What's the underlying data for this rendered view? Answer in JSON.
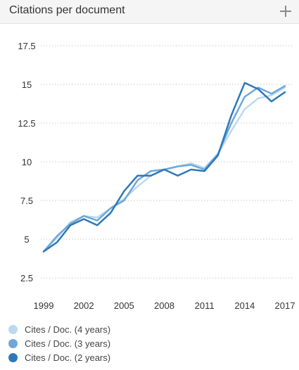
{
  "widget": {
    "title": "Citations per document",
    "add_icon": "plus-icon"
  },
  "colors": {
    "header_bg": "#f5f5f5",
    "grid": "#c8c8c8",
    "axis_text": "#333333"
  },
  "chart_data": {
    "type": "line",
    "title": "Citations per document",
    "xlabel": "",
    "ylabel": "",
    "x": [
      1999,
      2000,
      2001,
      2002,
      2003,
      2004,
      2005,
      2006,
      2007,
      2008,
      2009,
      2010,
      2011,
      2012,
      2013,
      2014,
      2015,
      2016,
      2017
    ],
    "xticks": [
      "1999",
      "2002",
      "2005",
      "2008",
      "2011",
      "2014",
      "2017"
    ],
    "xlim": [
      1999,
      2017
    ],
    "ylim": [
      2.5,
      17.5
    ],
    "yticks": [
      "2.5",
      "5",
      "7.5",
      "10",
      "12.5",
      "15",
      "17.5"
    ],
    "grid": "horizontal dotted",
    "legend": "bottom-left",
    "series": [
      {
        "name": "Cites / Doc. (4 years)",
        "color": "#bcd9ee",
        "values": [
          4.2,
          5.1,
          6.1,
          6.5,
          6.4,
          7.0,
          7.6,
          8.4,
          9.1,
          9.5,
          9.7,
          9.9,
          9.6,
          10.5,
          12.0,
          13.4,
          14.1,
          14.3,
          14.8
        ]
      },
      {
        "name": "Cites / Doc. (3 years)",
        "color": "#6fa8d8",
        "values": [
          4.2,
          5.2,
          6.0,
          6.5,
          6.2,
          7.0,
          7.5,
          8.8,
          9.4,
          9.5,
          9.7,
          9.8,
          9.5,
          10.5,
          12.5,
          14.2,
          14.8,
          14.4,
          14.9
        ]
      },
      {
        "name": "Cites / Doc. (2 years)",
        "color": "#2e78ba",
        "values": [
          4.2,
          4.8,
          5.9,
          6.3,
          5.9,
          6.7,
          8.1,
          9.1,
          9.1,
          9.5,
          9.1,
          9.5,
          9.4,
          10.4,
          13.0,
          15.1,
          14.7,
          13.9,
          14.5
        ]
      }
    ]
  }
}
